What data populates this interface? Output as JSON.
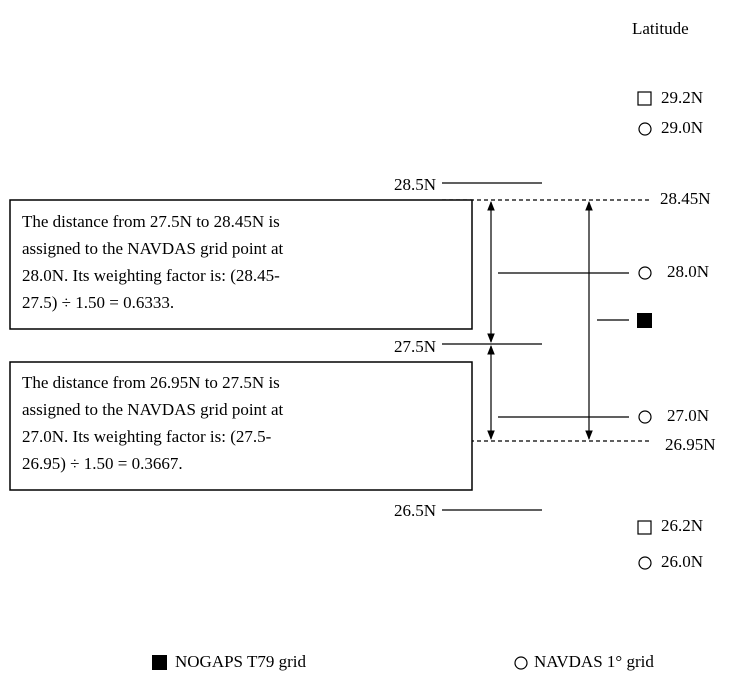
{
  "title": "Latitude",
  "right_labels": [
    "29.2N",
    "29.0N",
    "28.45N",
    "28.0N",
    "27.0N",
    "26.95N",
    "26.2N",
    "26.0N"
  ],
  "left_labels": [
    "28.5N",
    "27.5N",
    "26.5N"
  ],
  "boxes": [
    {
      "lines": [
        "The distance from 27.5N to 28.45N is",
        "assigned to the NAVDAS grid point at",
        "28.0N. Its weighting factor is: (28.45-",
        "27.5) ÷ 1.50 = 0.6333."
      ]
    },
    {
      "lines": [
        "The distance from 26.95N to 27.5N is",
        "assigned to the NAVDAS grid point at",
        "27.0N. Its weighting factor is: (27.5-",
        "26.95) ÷ 1.50 = 0.3667."
      ]
    }
  ],
  "legend": [
    "NOGAPS T79 grid",
    "NAVDAS 1° grid"
  ]
}
